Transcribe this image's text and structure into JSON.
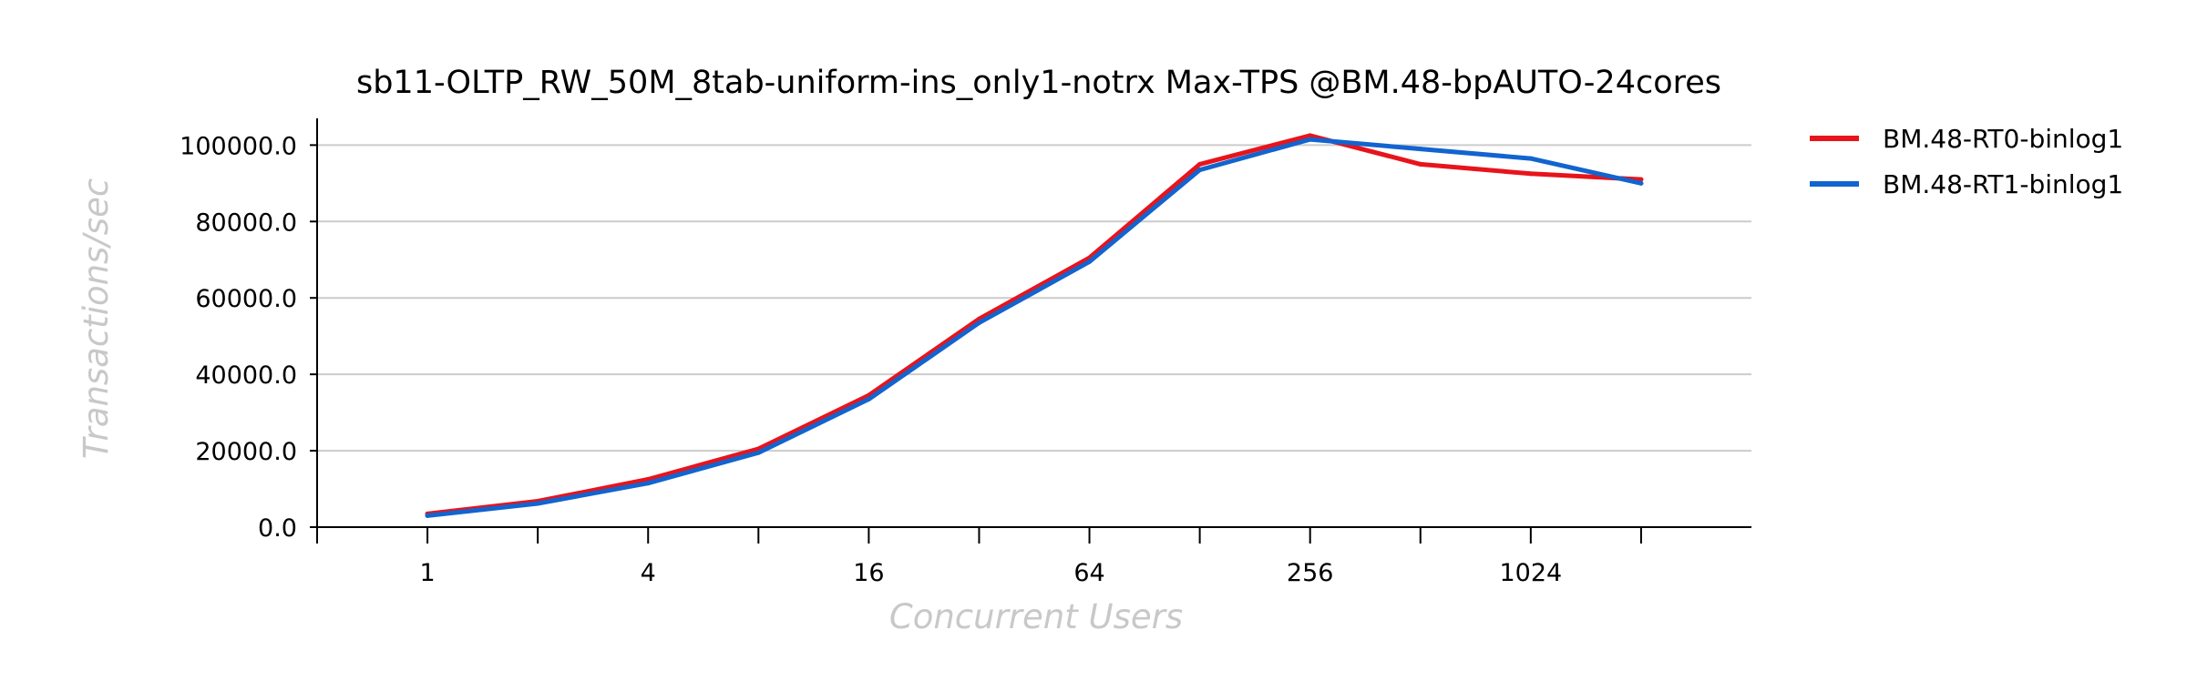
{
  "chart_data": {
    "type": "line",
    "title": "sb11-OLTP_RW_50M_8tab-uniform-ins_only1-notrx Max-TPS @BM.48-bpAUTO-24cores",
    "xlabel": "Concurrent Users",
    "ylabel": "Transactions/sec",
    "x_scale": "log2",
    "x": [
      1,
      2,
      4,
      8,
      16,
      32,
      64,
      128,
      256,
      512,
      1024,
      2048
    ],
    "x_tick_values": [
      1,
      4,
      16,
      64,
      256,
      1024
    ],
    "x_tick_labels": [
      "1",
      "4",
      "16",
      "64",
      "256",
      "1024"
    ],
    "y_tick_values": [
      0,
      20000,
      40000,
      60000,
      80000,
      100000
    ],
    "y_tick_labels": [
      "0.0",
      "20000.0",
      "40000.0",
      "60000.0",
      "80000.0",
      "100000.0"
    ],
    "ylim": [
      0,
      107000
    ],
    "grid": "horizontal",
    "legend_position": "right",
    "series": [
      {
        "name": "BM.48-RT0-binlog1",
        "color": "#e8141b",
        "values": [
          3500,
          6800,
          12500,
          20500,
          34500,
          54500,
          70500,
          95000,
          102500,
          95000,
          92500,
          91000
        ]
      },
      {
        "name": "BM.48-RT1-binlog1",
        "color": "#1264cf",
        "values": [
          3000,
          6200,
          11500,
          19500,
          33500,
          53500,
          69500,
          93500,
          101500,
          99000,
          96500,
          90000
        ]
      }
    ]
  }
}
